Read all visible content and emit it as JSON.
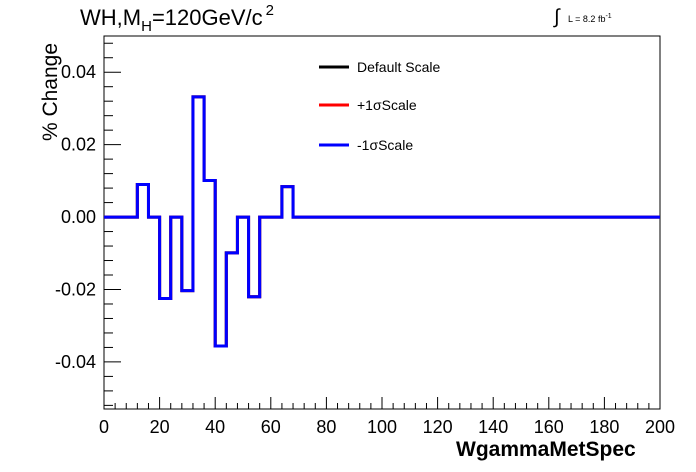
{
  "title": {
    "prefix": "WH,M",
    "subscript": "H",
    "value": "=120GeV/c",
    "superscript": "2"
  },
  "luminosity": {
    "integral_symbol": "∫",
    "text": "L = 8.2 fb",
    "superscript": "-1"
  },
  "legend": {
    "entries": [
      {
        "label": "Default Scale",
        "color": "#000000"
      },
      {
        "label": "+1σScale",
        "color": "#ff0000"
      },
      {
        "label": "-1σScale",
        "color": "#0000ff"
      }
    ]
  },
  "chart_data": {
    "type": "line",
    "title": "WH,M_H=120GeV/c^2",
    "xlabel": "WgammaMetSpec",
    "ylabel": "% Change",
    "xlim": [
      0,
      200
    ],
    "ylim": [
      -0.053,
      0.05
    ],
    "x_ticks": [
      "0",
      "20",
      "40",
      "60",
      "80",
      "100",
      "120",
      "140",
      "160",
      "180",
      "200"
    ],
    "y_ticks": [
      "-0.04",
      "-0.02",
      "0.00",
      "0.02",
      "0.04"
    ],
    "bin_edges": [
      0,
      4,
      8,
      12,
      16,
      20,
      24,
      28,
      32,
      36,
      40,
      44,
      48,
      52,
      56,
      60,
      64,
      68,
      200
    ],
    "series": [
      {
        "name": "Default Scale",
        "color": "#000000",
        "values": [
          0,
          0,
          0,
          0.009,
          0,
          -0.0225,
          0,
          -0.0203,
          0.0332,
          0.0101,
          -0.0356,
          -0.0099,
          0,
          -0.022,
          0,
          0,
          0.0084,
          0
        ]
      },
      {
        "name": "+1σScale",
        "color": "#ff0000",
        "values": [
          0,
          0,
          0,
          0.009,
          0,
          -0.0225,
          0,
          -0.0203,
          0.0332,
          0.0101,
          -0.0356,
          -0.0099,
          0,
          -0.022,
          0,
          0,
          0.0084,
          0
        ]
      },
      {
        "name": "-1σScale",
        "color": "#0000ff",
        "values": [
          0,
          0,
          0,
          0.009,
          0,
          -0.0225,
          0,
          -0.0203,
          0.0332,
          0.0101,
          -0.0356,
          -0.0099,
          0,
          -0.022,
          0,
          0,
          0.0084,
          0
        ]
      }
    ],
    "grid": false,
    "legend_position": "top-center"
  }
}
